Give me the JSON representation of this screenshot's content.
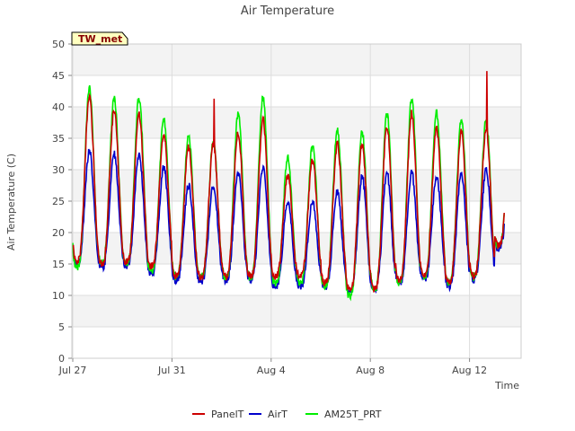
{
  "chart_data": {
    "type": "line",
    "title": "Air Temperature",
    "xlabel": "Time",
    "ylabel": "Air Temperature (C)",
    "station_label": "TW_met",
    "ylim": [
      0,
      50
    ],
    "y_ticks": [
      0,
      5,
      10,
      15,
      20,
      25,
      30,
      35,
      40,
      45,
      50
    ],
    "x_ticks": [
      {
        "label": "Jul 27",
        "day": 0
      },
      {
        "label": "Jul 31",
        "day": 4
      },
      {
        "label": "Aug 4",
        "day": 8
      },
      {
        "label": "Aug 8",
        "day": 12
      },
      {
        "label": "Aug 12",
        "day": 16
      }
    ],
    "xlim_days": [
      0,
      18
    ],
    "grid": true,
    "legend_position": "bottom",
    "series": [
      {
        "name": "PanelT",
        "color": "#cc0000",
        "daily_min": [
          15.5,
          15.0,
          15.2,
          14.8,
          13.0,
          13.0,
          13.0,
          13.0,
          13.0,
          13.0,
          12.0,
          11.0,
          11.0,
          12.5,
          13.0,
          12.0,
          13.0,
          18.0
        ],
        "daily_max": [
          41.5,
          39.5,
          39.0,
          35.5,
          33.5,
          34.0,
          36.0,
          38.0,
          29.0,
          31.5,
          34.0,
          34.0,
          37.0,
          39.0,
          36.5,
          36.0,
          36.5,
          36.0
        ],
        "spikes": [
          {
            "day": 5.7,
            "value": 41.3
          },
          {
            "day": 16.7,
            "value": 45.7
          }
        ]
      },
      {
        "name": "AirT",
        "color": "#0000cc",
        "daily_min": [
          15.0,
          14.5,
          14.8,
          13.5,
          12.5,
          12.3,
          12.5,
          12.5,
          11.5,
          11.5,
          11.3,
          10.5,
          11.0,
          12.0,
          12.5,
          11.5,
          12.5,
          17.5
        ],
        "daily_max": [
          33.0,
          32.5,
          32.5,
          30.5,
          27.5,
          27.5,
          29.5,
          30.5,
          25.0,
          25.0,
          26.5,
          29.0,
          29.5,
          29.5,
          29.0,
          29.5,
          30.0,
          30.0
        ],
        "spikes": []
      },
      {
        "name": "AM25T_PRT",
        "color": "#00ee00",
        "daily_min": [
          14.5,
          15.0,
          15.0,
          14.0,
          13.0,
          13.0,
          13.0,
          13.0,
          12.0,
          12.0,
          11.5,
          10.0,
          11.0,
          12.0,
          13.0,
          12.0,
          13.0,
          18.0
        ],
        "daily_max": [
          43.0,
          41.5,
          41.5,
          38.0,
          35.5,
          34.5,
          39.0,
          41.5,
          32.0,
          34.0,
          36.5,
          36.0,
          39.0,
          41.5,
          39.0,
          38.0,
          38.0,
          37.5
        ],
        "spikes": []
      }
    ]
  }
}
